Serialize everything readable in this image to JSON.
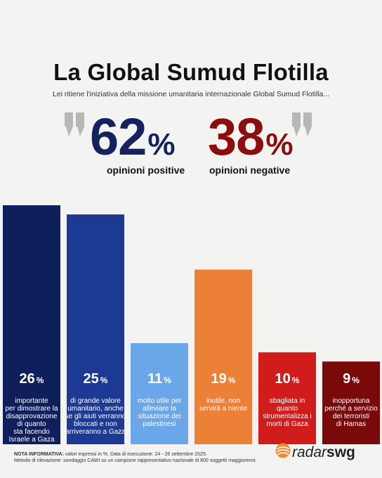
{
  "header": {
    "title": "La Global Sumud Flotilla",
    "subtitle": "Lei ritiene l'iniziativa della missione umanitaria internazionale Global Sumud Flotilla..."
  },
  "summary": {
    "positive": {
      "value": "62",
      "symbol": "%",
      "label": "opinioni positive",
      "color": "#14235e"
    },
    "negative": {
      "value": "38",
      "symbol": "%",
      "label": "opinioni negative",
      "color": "#8b0d0d"
    }
  },
  "chart_data": {
    "type": "bar",
    "title": "",
    "xlabel": "",
    "ylabel": "",
    "ylim": [
      0,
      26
    ],
    "grid": false,
    "categories": [
      "importante per dimostrare la disapprovazione di quanto sta facendo Israele a Gaza",
      "di grande valore umanitario, anche se gli aiuti verranno bloccati e non arriveranno a Gaza",
      "molto utile per alleviare la situazione dei palestinesi",
      "inutile, non servirà a niente",
      "sbagliata in quanto strumentalizza i morti di Gaza",
      "inopportuna perché a servizio dei terroristi di Hamas"
    ],
    "category_lines": [
      [
        "importante",
        "per dimostrare la",
        "disapprovazione",
        "di quanto",
        "sta facendo",
        "Israele a Gaza"
      ],
      [
        "di grande valore",
        "umanitario, anche",
        "se gli aiuti verranno",
        "bloccati e non",
        "arriveranno a Gaza"
      ],
      [
        "molto utile per",
        "alleviare la",
        "situazione dei",
        "palestinesi"
      ],
      [
        "inutile, non",
        "servirà a niente"
      ],
      [
        "sbagliata in",
        "quanto",
        "strumentalizza i",
        "morti di Gaza"
      ],
      [
        "inopportuna",
        "perché a servizio",
        "dei terroristi",
        "di Hamas"
      ]
    ],
    "values": [
      26,
      25,
      11,
      19,
      10,
      9
    ],
    "value_labels": [
      "26",
      "25",
      "11",
      "19",
      "10",
      "9"
    ],
    "value_suffix": "%",
    "colors": [
      "#0f1f5c",
      "#1c3a93",
      "#6aa7e8",
      "#ec8036",
      "#d11c1c",
      "#7a0a0a"
    ]
  },
  "footer": {
    "note_label": "NOTA INFORMATIVA:",
    "note_line1": " valori espressi in %. Data di esecuzione: 24 - 26 settembre 2025.",
    "note_line2": "Metodo di rilevazione: sondaggio CAWI su un campione rappresentativo nazionale di 800 soggetti maggiorenni.",
    "logo_part1": "radar",
    "logo_part2": "swg"
  }
}
